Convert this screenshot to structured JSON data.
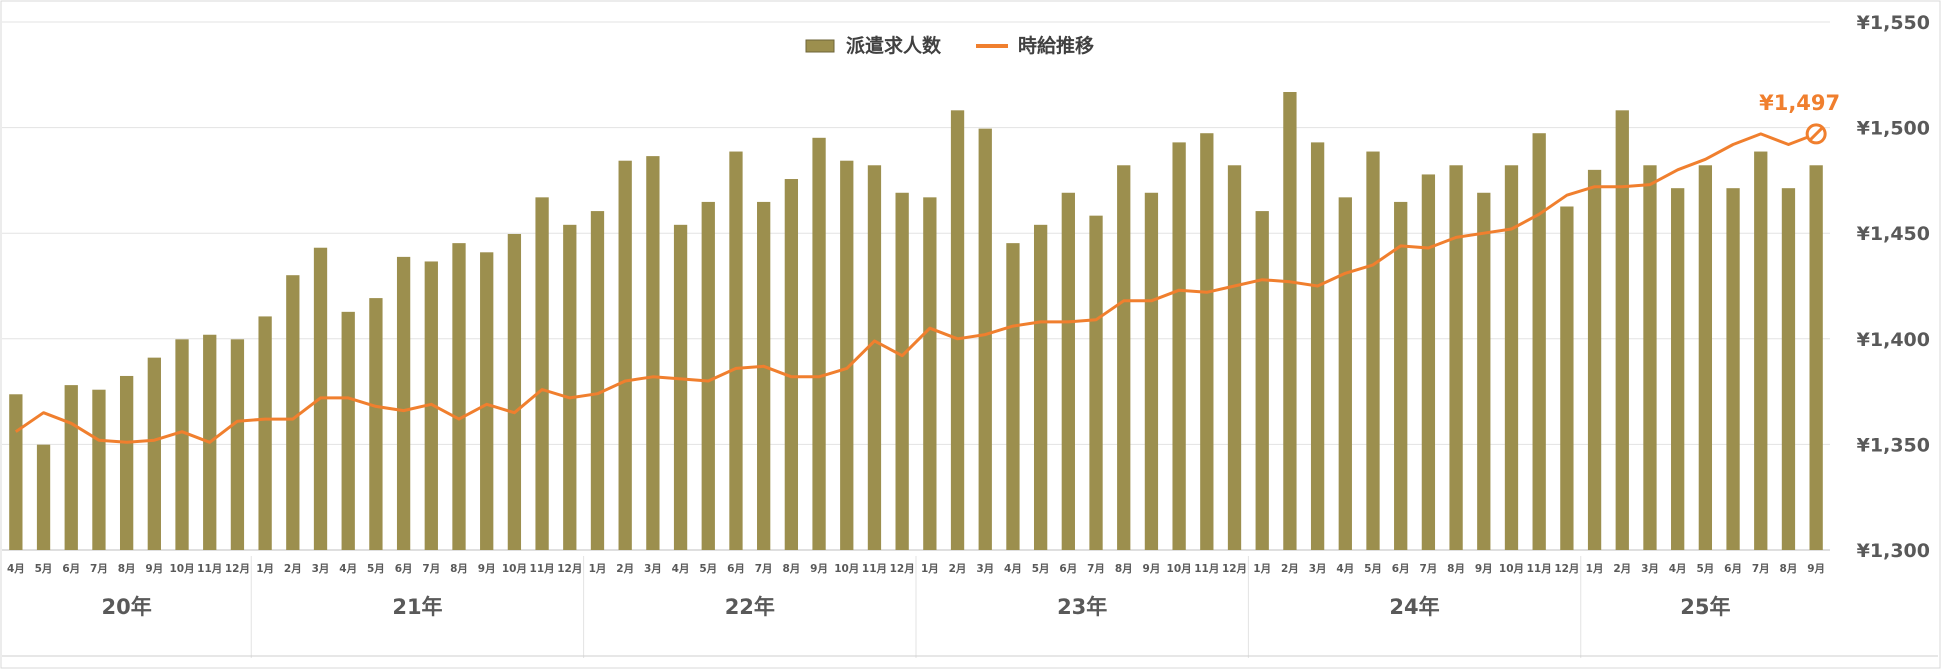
{
  "chart_data": {
    "type": "bar+line",
    "colors": {
      "bar": "#9C8F4E",
      "line": "#F07F2E",
      "grid": "#E3E3E3",
      "text": "#595959"
    },
    "legend": {
      "position": "top-center",
      "bar_label": "派遣求人数",
      "line_label": "時給推移"
    },
    "y_axis": {
      "position": "right",
      "min": 1300,
      "max": 1550,
      "ticks": [
        "¥1,300",
        "¥1,350",
        "¥1,400",
        "¥1,450",
        "¥1,500",
        "¥1,550"
      ]
    },
    "month_labels": [
      "4月",
      "5月",
      "6月",
      "7月",
      "8月",
      "9月",
      "10月",
      "11月",
      "12月",
      "1月",
      "2月",
      "3月",
      "4月",
      "5月",
      "6月",
      "7月",
      "8月",
      "9月",
      "10月",
      "11月",
      "12月",
      "1月",
      "2月",
      "3月",
      "4月",
      "5月",
      "6月",
      "7月",
      "8月",
      "9月",
      "10月",
      "11月",
      "12月",
      "1月",
      "2月",
      "3月",
      "4月",
      "5月",
      "6月",
      "7月",
      "8月",
      "9月",
      "10月",
      "11月",
      "12月",
      "1月",
      "2月",
      "3月",
      "4月",
      "5月",
      "6月",
      "7月",
      "8月",
      "9月",
      "10月",
      "11月",
      "12月",
      "1月",
      "2月",
      "3月",
      "4月",
      "5月",
      "6月",
      "7月",
      "8月",
      "9月"
    ],
    "year_groups": [
      {
        "label": "20年",
        "count": 9
      },
      {
        "label": "21年",
        "count": 12
      },
      {
        "label": "22年",
        "count": 12
      },
      {
        "label": "23年",
        "count": 12
      },
      {
        "label": "24年",
        "count": 12
      },
      {
        "label": "25年",
        "count": 9
      }
    ],
    "bar_values_relative": [
      0.34,
      0.23,
      0.36,
      0.35,
      0.38,
      0.42,
      0.46,
      0.47,
      0.46,
      0.51,
      0.6,
      0.66,
      0.52,
      0.55,
      0.64,
      0.63,
      0.67,
      0.65,
      0.69,
      0.77,
      0.71,
      0.74,
      0.85,
      0.86,
      0.71,
      0.76,
      0.87,
      0.76,
      0.81,
      0.9,
      0.85,
      0.84,
      0.78,
      0.77,
      0.96,
      0.92,
      0.67,
      0.71,
      0.78,
      0.73,
      0.84,
      0.78,
      0.89,
      0.91,
      0.84,
      0.74,
      1.0,
      0.89,
      0.77,
      0.87,
      0.76,
      0.82,
      0.84,
      0.78,
      0.84,
      0.91,
      0.75,
      0.83,
      0.96,
      0.84,
      0.79,
      0.84,
      0.79,
      0.87,
      0.79,
      0.84
    ],
    "line_values": [
      1356,
      1365,
      1360,
      1352,
      1351,
      1352,
      1356,
      1351,
      1361,
      1362,
      1362,
      1372,
      1372,
      1368,
      1366,
      1369,
      1362,
      1369,
      1365,
      1376,
      1372,
      1374,
      1380,
      1382,
      1381,
      1380,
      1386,
      1387,
      1382,
      1382,
      1386,
      1399,
      1392,
      1405,
      1400,
      1402,
      1406,
      1408,
      1408,
      1409,
      1418,
      1418,
      1423,
      1422,
      1425,
      1428,
      1427,
      1425,
      1431,
      1435,
      1444,
      1443,
      1448,
      1450,
      1452,
      1459,
      1468,
      1472,
      1472,
      1473,
      1480,
      1485,
      1492,
      1497,
      1492,
      1497
    ],
    "last_label": "¥1,497"
  }
}
